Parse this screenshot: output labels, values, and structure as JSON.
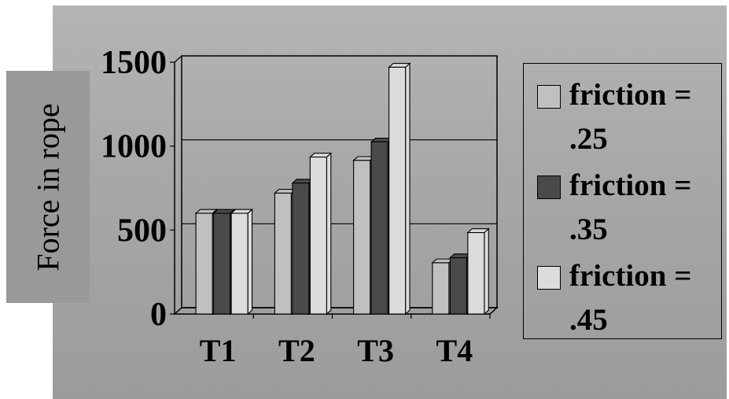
{
  "chart_data": {
    "type": "bar",
    "ylabel": "Force in rope",
    "xlabel": "",
    "categories": [
      "T1",
      "T2",
      "T3",
      "T4"
    ],
    "yticks": [
      "0",
      "500",
      "1000",
      "1500"
    ],
    "ylim": [
      0,
      1500
    ],
    "grid": true,
    "legend_position": "right",
    "series": [
      {
        "name": "friction = .25",
        "values": [
          600,
          720,
          915,
          305
        ],
        "color": "#c0c0c0"
      },
      {
        "name": "friction = .35",
        "values": [
          600,
          780,
          1025,
          335
        ],
        "color": "#4a4a4a"
      },
      {
        "name": "friction = .45",
        "values": [
          600,
          935,
          1470,
          485
        ],
        "color": "#dcdcdc"
      }
    ]
  }
}
